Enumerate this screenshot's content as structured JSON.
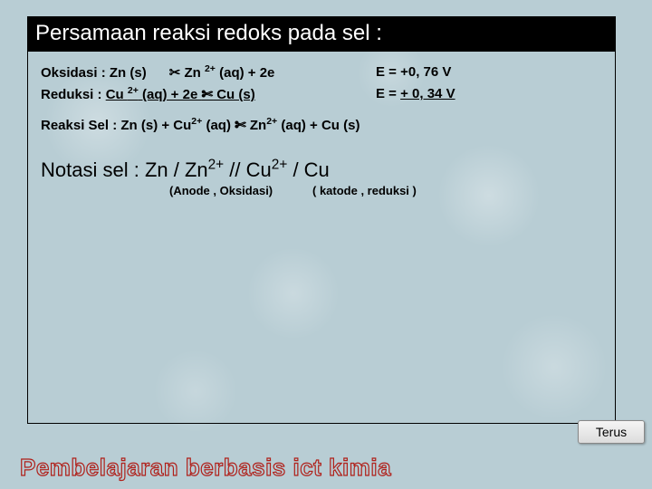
{
  "title": "Persamaan reaksi redoks pada sel :",
  "oksidasi": {
    "lhs_pre": "Oksidasi : Zn (s)      ",
    "arrow": "✂",
    "lhs_post": " Zn ",
    "sup": "2+",
    "lhs_tail": "  (aq)  + 2e",
    "rhs": "E  =  +0, 76 V"
  },
  "reduksi": {
    "lhs_pre": "Reduksi : ",
    "u1": "Cu ",
    "sup1": "2+",
    "u2": " (aq)  + 2e ",
    "arrow": "✄",
    "u3": "  Cu (s)",
    "rhs_pre": "E = ",
    "rhs_u": " + 0, 34  V"
  },
  "reaksi": {
    "pre": "Reaksi Sel : Zn (s) + Cu",
    "sup1": "2+",
    "mid1": " (aq) ",
    "arrow": "✄",
    "mid2": " Zn",
    "sup2": "2+",
    "post": " (aq) + Cu (s)"
  },
  "notasi": {
    "label": "Notasi sel : ",
    "body_pre": "Zn   /  Zn",
    "sup1": "2+",
    "mid": "    //  Cu",
    "sup2": "2+",
    "post": "  /  Cu"
  },
  "anode": {
    "a": "(Anode , Oksidasi)",
    "k": "( katode , reduksi )"
  },
  "button": "Terus",
  "footer": "Pembelajaran berbasis ict kimia"
}
